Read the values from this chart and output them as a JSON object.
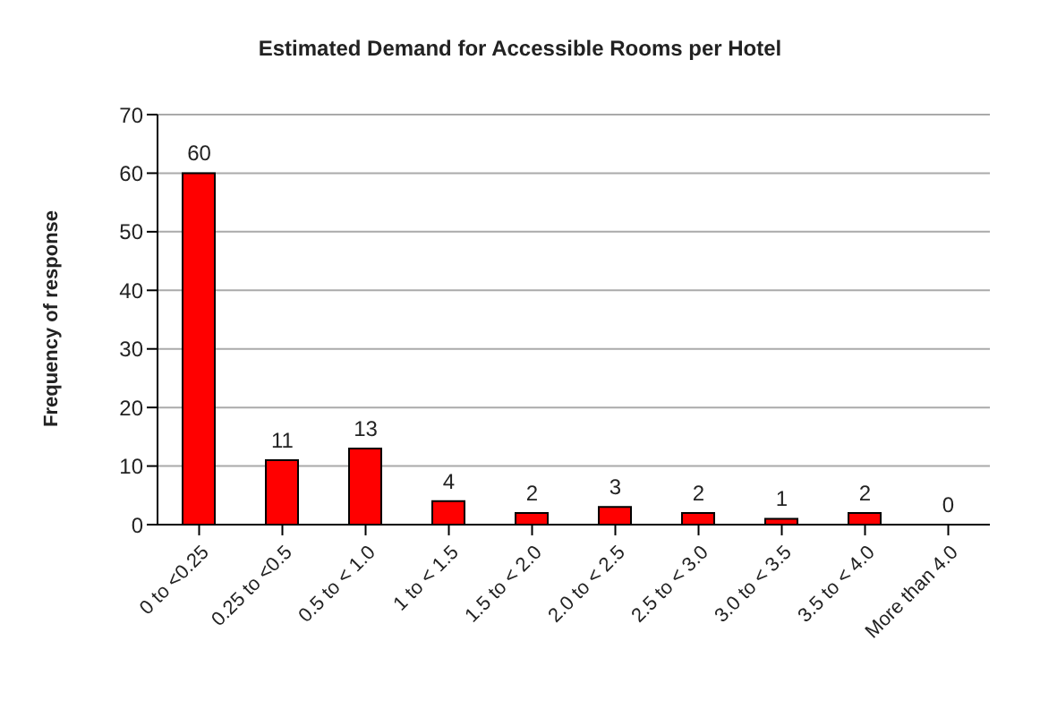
{
  "chart_data": {
    "type": "bar",
    "title": "Estimated Demand for Accessible Rooms per Hotel",
    "ylabel": "Frequency of response",
    "categories": [
      "0 to <0.25",
      "0.25 to <0.5",
      "0.5 to < 1.0",
      "1 to < 1.5",
      "1.5 to < 2.0",
      "2.0 to < 2.5",
      "2.5 to < 3.0",
      "3.0 to < 3.5",
      "3.5 to < 4.0",
      "More than 4.0"
    ],
    "values": [
      60,
      11,
      13,
      4,
      2,
      3,
      2,
      1,
      2,
      0
    ],
    "color": "#ff0000",
    "ylim": [
      0,
      70
    ],
    "yticks": [
      0,
      10,
      20,
      30,
      40,
      50,
      60,
      70
    ],
    "grid": "y",
    "data_labels": true,
    "legend": false
  }
}
